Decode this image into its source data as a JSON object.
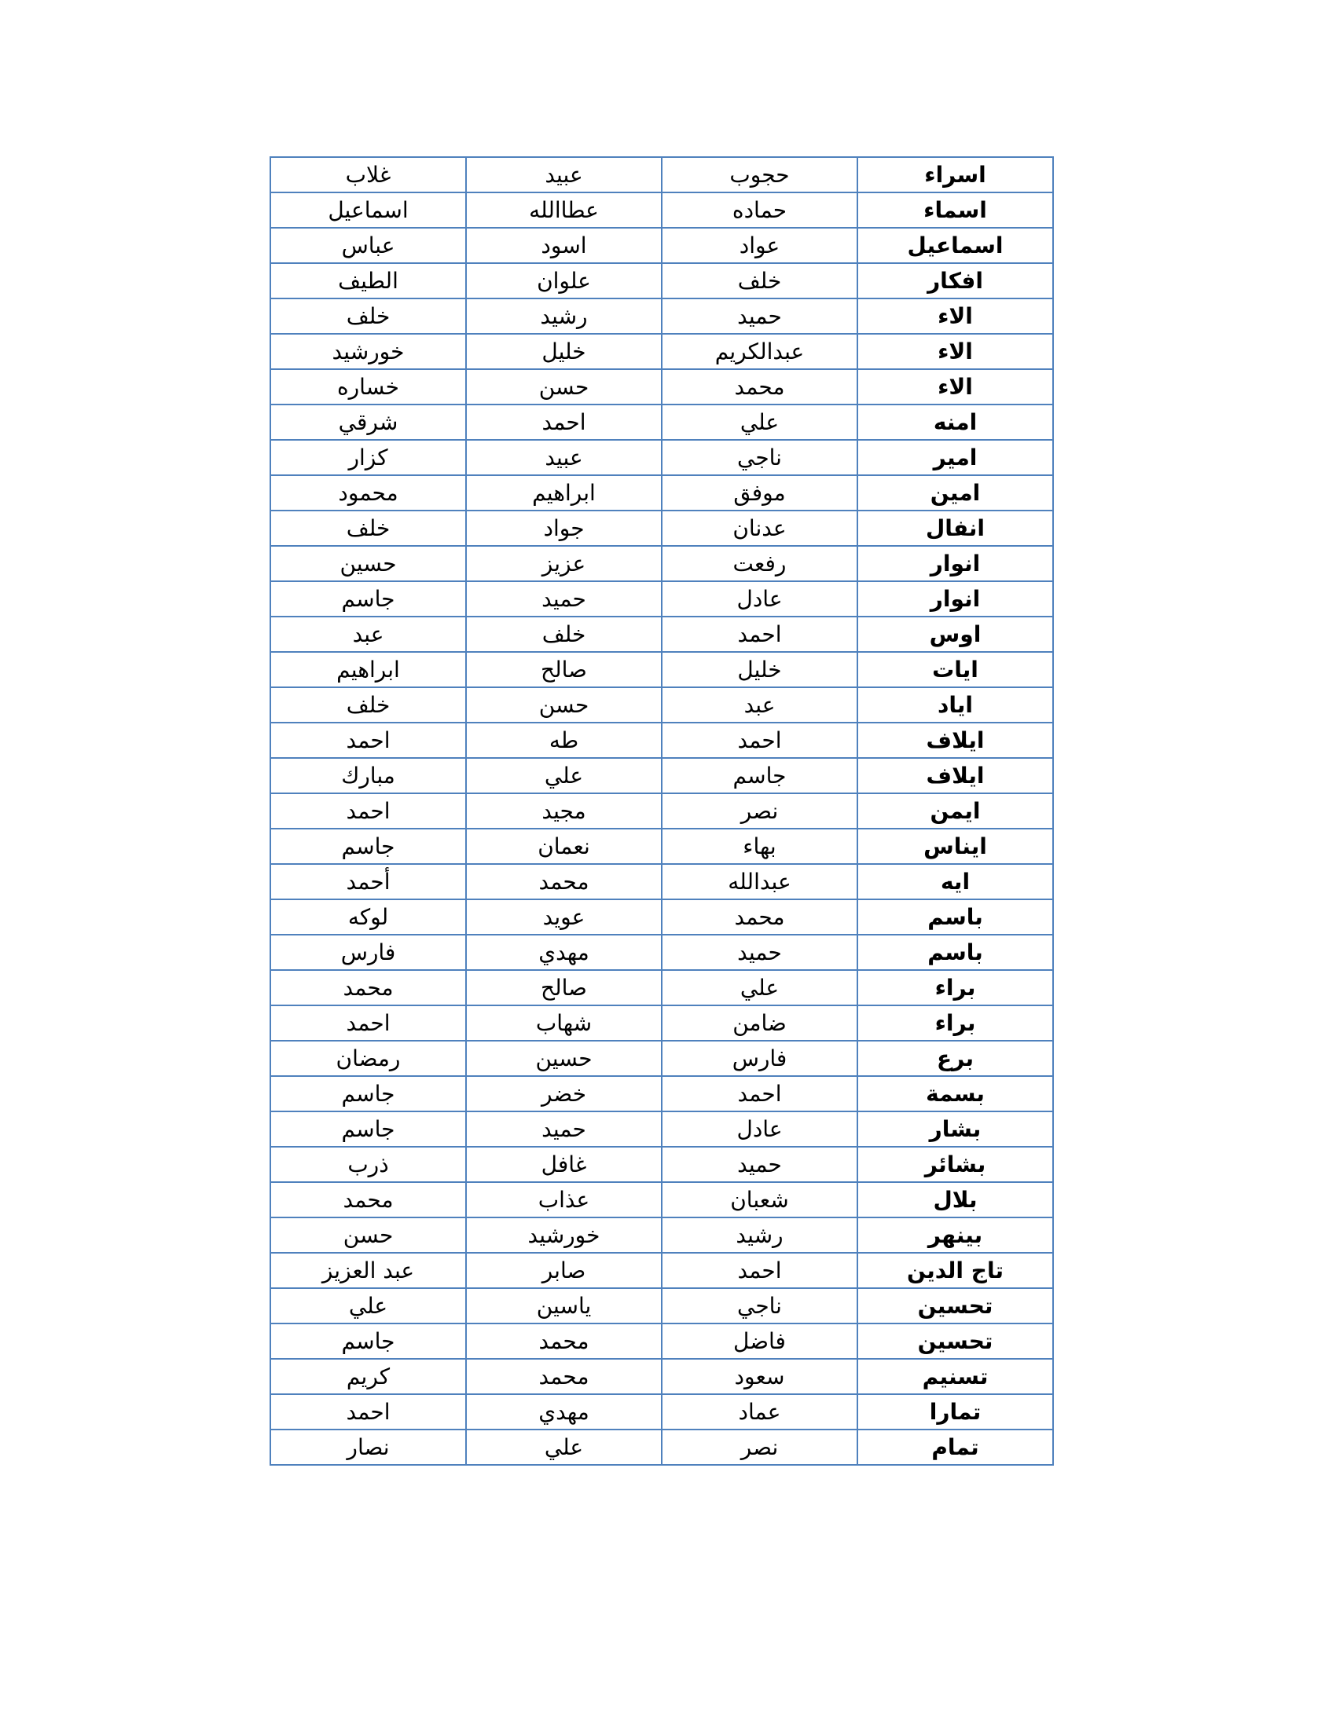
{
  "table": {
    "border_color": "#4f81bd",
    "rows": [
      [
        "اسراء",
        "حجوب",
        "عبيد",
        "غلاب"
      ],
      [
        "اسماء",
        "حماده",
        "عطاالله",
        "اسماعيل"
      ],
      [
        "اسماعيل",
        "عواد",
        "اسود",
        "عباس"
      ],
      [
        "افكار",
        "خلف",
        "علوان",
        "الطيف"
      ],
      [
        "الاء",
        "حميد",
        "رشيد",
        "خلف"
      ],
      [
        "الاء",
        "عبدالكريم",
        "خليل",
        "خورشيد"
      ],
      [
        "الاء",
        "محمد",
        "حسن",
        "خساره"
      ],
      [
        "امنه",
        "علي",
        "احمد",
        "شرقي"
      ],
      [
        "امير",
        "ناجي",
        "عبيد",
        "كزار"
      ],
      [
        "امين",
        "موفق",
        "ابراهيم",
        "محمود"
      ],
      [
        "انفال",
        "عدنان",
        "جواد",
        "خلف"
      ],
      [
        "انوار",
        "رفعت",
        "عزيز",
        "حسين"
      ],
      [
        "انوار",
        "عادل",
        "حميد",
        "جاسم"
      ],
      [
        "اوس",
        "احمد",
        "خلف",
        "عبد"
      ],
      [
        "ايات",
        "خليل",
        "صالح",
        "ابراهيم"
      ],
      [
        "اياد",
        "عبد",
        "حسن",
        "خلف"
      ],
      [
        "ايلاف",
        "احمد",
        "طه",
        "احمد"
      ],
      [
        "ايلاف",
        "جاسم",
        "علي",
        "مبارك"
      ],
      [
        "ايمن",
        "نصر",
        "مجيد",
        "احمد"
      ],
      [
        "ايناس",
        "بهاء",
        "نعمان",
        "جاسم"
      ],
      [
        "ايه",
        "عبدالله",
        "محمد",
        "أحمد"
      ],
      [
        "باسم",
        "محمد",
        "عويد",
        "لوكه"
      ],
      [
        "باسم",
        "حميد",
        "مهدي",
        "فارس"
      ],
      [
        "براء",
        "علي",
        "صالح",
        "محمد"
      ],
      [
        "براء",
        "ضامن",
        "شهاب",
        "احمد"
      ],
      [
        "برع",
        "فارس",
        "حسين",
        "رمضان"
      ],
      [
        "بسمة",
        "احمد",
        "خضر",
        "جاسم"
      ],
      [
        "بشار",
        "عادل",
        "حميد",
        "جاسم"
      ],
      [
        "بشائر",
        "حميد",
        "غافل",
        "ذرب"
      ],
      [
        "بلال",
        "شعبان",
        "عذاب",
        "محمد"
      ],
      [
        "بينهر",
        "رشيد",
        "خورشيد",
        "حسن"
      ],
      [
        "تاج الدين",
        "احمد",
        "صابر",
        "عبد العزيز"
      ],
      [
        "تحسين",
        "ناجي",
        "ياسين",
        "علي"
      ],
      [
        "تحسين",
        "فاضل",
        "محمد",
        "جاسم"
      ],
      [
        "تسنيم",
        "سعود",
        "محمد",
        "كريم"
      ],
      [
        "تمارا",
        "عماد",
        "مهدي",
        "احمد"
      ],
      [
        "تمام",
        "نصر",
        "علي",
        "نصار"
      ]
    ]
  }
}
